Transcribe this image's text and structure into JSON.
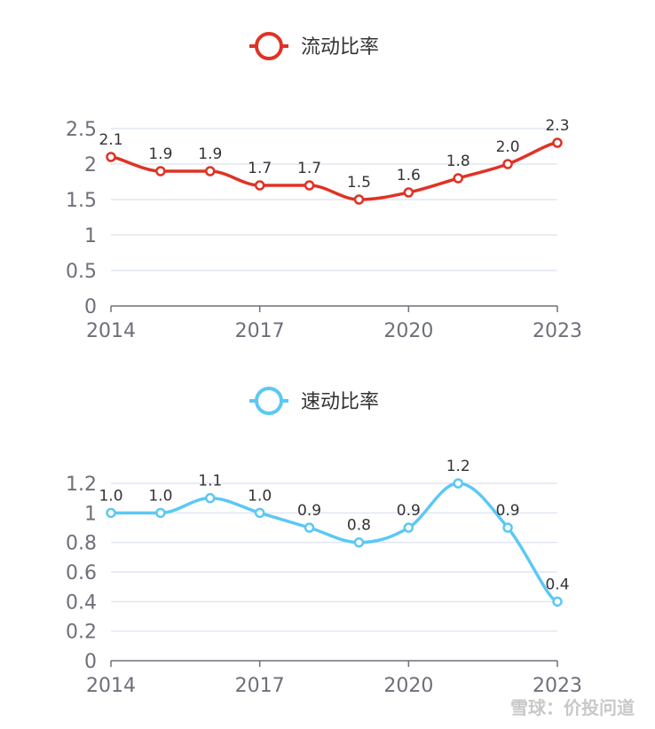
{
  "chart_data": [
    {
      "type": "line",
      "smooth": true,
      "legend": "流动比率",
      "legend_position": "top-center",
      "color": "#e03225",
      "x": [
        2014,
        2015,
        2016,
        2017,
        2018,
        2019,
        2020,
        2021,
        2022,
        2023
      ],
      "values": [
        2.1,
        1.9,
        1.9,
        1.7,
        1.7,
        1.5,
        1.6,
        1.8,
        2.0,
        2.3
      ],
      "value_labels": [
        "2.1",
        "1.9",
        "1.9",
        "1.7",
        "1.7",
        "1.5",
        "1.6",
        "1.8",
        "2.0",
        "2.3"
      ],
      "x_tick_labels": [
        "2014",
        "2017",
        "2020",
        "2023"
      ],
      "y_ticks": [
        0,
        0.5,
        1,
        1.5,
        2,
        2.5
      ],
      "y_tick_labels": [
        "0",
        "0.5",
        "1",
        "1.5",
        "2",
        "2.5"
      ],
      "ylim": [
        0,
        2.5
      ],
      "grid": true
    },
    {
      "type": "line",
      "smooth": true,
      "legend": "速动比率",
      "legend_position": "top-center",
      "color": "#5bc8f5",
      "x": [
        2014,
        2015,
        2016,
        2017,
        2018,
        2019,
        2020,
        2021,
        2022,
        2023
      ],
      "values": [
        1.0,
        1.0,
        1.1,
        1.0,
        0.9,
        0.8,
        0.9,
        1.2,
        0.9,
        0.4
      ],
      "value_labels": [
        "1.0",
        "1.0",
        "1.1",
        "1.0",
        "0.9",
        "0.8",
        "0.9",
        "1.2",
        "0.9",
        "0.4"
      ],
      "x_tick_labels": [
        "2014",
        "2017",
        "2020",
        "2023"
      ],
      "y_ticks": [
        0,
        0.2,
        0.4,
        0.6,
        0.8,
        1,
        1.2
      ],
      "y_tick_labels": [
        "0",
        "0.2",
        "0.4",
        "0.6",
        "0.8",
        "1",
        "1.2"
      ],
      "ylim": [
        0,
        1.2
      ],
      "grid": true
    }
  ],
  "watermark": "雪球：价投问道"
}
